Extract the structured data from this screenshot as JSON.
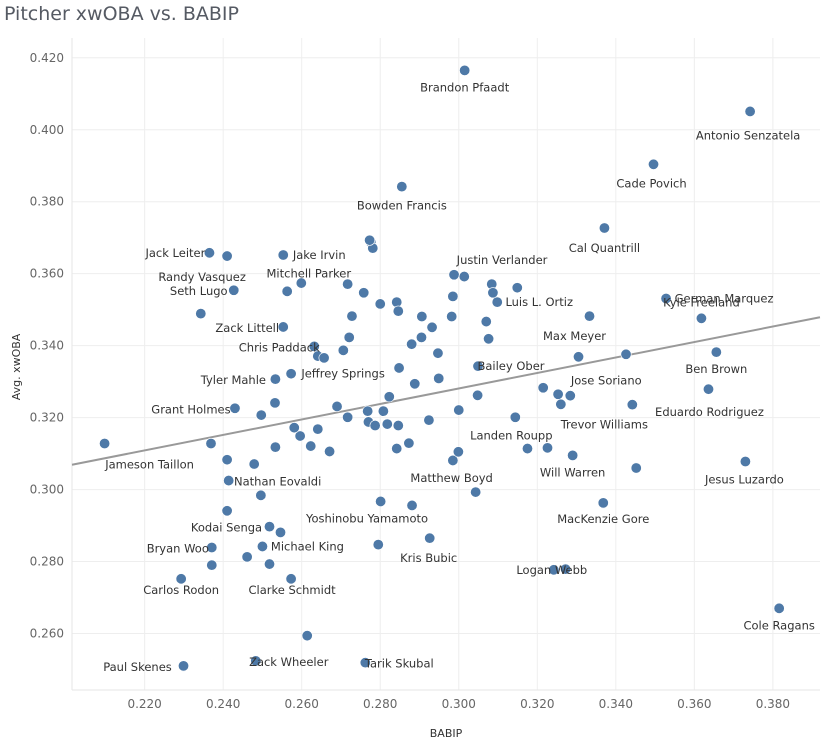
{
  "chart_data": {
    "type": "scatter",
    "title": "Pitcher xwOBA vs. BABIP",
    "xlabel": "BABIP",
    "ylabel": "Avg. xwOBA",
    "xlim": [
      0.2015,
      0.392
    ],
    "ylim": [
      0.2443,
      0.4255
    ],
    "x_ticks": [
      "0.220",
      "0.240",
      "0.260",
      "0.280",
      "0.300",
      "0.320",
      "0.340",
      "0.360",
      "0.380"
    ],
    "x_tick_values": [
      0.22,
      0.24,
      0.26,
      0.28,
      0.3,
      0.32,
      0.34,
      0.36,
      0.38
    ],
    "y_ticks": [
      "0.260",
      "0.280",
      "0.300",
      "0.320",
      "0.340",
      "0.360",
      "0.380",
      "0.400",
      "0.420"
    ],
    "y_tick_values": [
      0.26,
      0.28,
      0.3,
      0.32,
      0.34,
      0.36,
      0.38,
      0.4,
      0.42
    ],
    "grid": true,
    "trend_line": {
      "x": [
        0.2015,
        0.392
      ],
      "y": [
        0.3069,
        0.3479
      ]
    },
    "marker_color": "#4e79a7",
    "trend_color": "#999999",
    "points": [
      {
        "x": 0.3015,
        "y": 0.4165,
        "label": "Brandon Pfaadt"
      },
      {
        "x": 0.3742,
        "y": 0.4051,
        "label": "Antonio Senzatela"
      },
      {
        "x": 0.3496,
        "y": 0.3904,
        "label": "Cade Povich"
      },
      {
        "x": 0.2855,
        "y": 0.3842,
        "label": "Bowden Francis"
      },
      {
        "x": 0.3371,
        "y": 0.3727,
        "label": "Cal Quantrill"
      },
      {
        "x": 0.2365,
        "y": 0.3658,
        "label": "Jack Leiter"
      },
      {
        "x": 0.2553,
        "y": 0.3652,
        "label": "Jake Irvin"
      },
      {
        "x": 0.2988,
        "y": 0.3597,
        "label": "Justin Verlander"
      },
      {
        "x": 0.241,
        "y": 0.3649,
        "label": "Randy Vasquez"
      },
      {
        "x": 0.2776,
        "y": 0.3687,
        "label": "Mitchell Parker"
      },
      {
        "x": 0.2427,
        "y": 0.3554,
        "label": "Seth Lugo"
      },
      {
        "x": 0.3098,
        "y": 0.3521,
        "label": "Luis L. Ortiz"
      },
      {
        "x": 0.3528,
        "y": 0.3531,
        "label": "German Marquez"
      },
      {
        "x": 0.2553,
        "y": 0.3452,
        "label": "Zack Littell"
      },
      {
        "x": 0.3333,
        "y": 0.3482,
        "label": "Max Meyer"
      },
      {
        "x": 0.3618,
        "y": 0.3476,
        "label": "Kyle Freeland"
      },
      {
        "x": 0.2632,
        "y": 0.3398,
        "label": "Chris Paddack"
      },
      {
        "x": 0.3049,
        "y": 0.3343,
        "label": "Bailey Ober"
      },
      {
        "x": 0.3656,
        "y": 0.3382,
        "label": "Ben Brown"
      },
      {
        "x": 0.2533,
        "y": 0.3307,
        "label": "Tyler Mahle"
      },
      {
        "x": 0.2573,
        "y": 0.3322,
        "label": "Jeffrey Springs"
      },
      {
        "x": 0.3284,
        "y": 0.3261,
        "label": "Jose Soriano"
      },
      {
        "x": 0.243,
        "y": 0.3226,
        "label": "Grant Holmes"
      },
      {
        "x": 0.3636,
        "y": 0.3279,
        "label": "Eduardo Rodriguez"
      },
      {
        "x": 0.3442,
        "y": 0.3236,
        "label": "Trevor Williams"
      },
      {
        "x": 0.2098,
        "y": 0.3128,
        "label": "Jameson Taillon"
      },
      {
        "x": 0.3144,
        "y": 0.3201,
        "label": "Landen Roupp"
      },
      {
        "x": 0.373,
        "y": 0.3078,
        "label": "Jesus Luzardo"
      },
      {
        "x": 0.329,
        "y": 0.3095,
        "label": "Will Warren"
      },
      {
        "x": 0.2414,
        "y": 0.3025,
        "label": "Nathan Eovaldi"
      },
      {
        "x": 0.3043,
        "y": 0.2993,
        "label": "Matthew Boyd"
      },
      {
        "x": 0.2881,
        "y": 0.2956,
        "label": "Yoshinobu Yamamoto"
      },
      {
        "x": 0.3368,
        "y": 0.2963,
        "label": "MacKenzie Gore"
      },
      {
        "x": 0.2518,
        "y": 0.2897,
        "label": "Kodai Senga"
      },
      {
        "x": 0.2371,
        "y": 0.2839,
        "label": "Bryan Woo"
      },
      {
        "x": 0.25,
        "y": 0.2842,
        "label": "Michael King"
      },
      {
        "x": 0.2926,
        "y": 0.2865,
        "label": "Kris Bubic"
      },
      {
        "x": 0.2293,
        "y": 0.2752,
        "label": "Carlos Rodon"
      },
      {
        "x": 0.2573,
        "y": 0.2752,
        "label": "Clarke Schmidt"
      },
      {
        "x": 0.3242,
        "y": 0.2777,
        "label": "Logan Webb"
      },
      {
        "x": 0.3816,
        "y": 0.267,
        "label": "Cole Ragans"
      },
      {
        "x": 0.2299,
        "y": 0.251,
        "label": "Paul Skenes"
      },
      {
        "x": 0.2483,
        "y": 0.2524,
        "label": "Zack Wheeler"
      },
      {
        "x": 0.2762,
        "y": 0.2519,
        "label": "Tarik Skubal"
      },
      {
        "x": 0.2614,
        "y": 0.2594,
        "label": ""
      },
      {
        "x": 0.2371,
        "y": 0.279,
        "label": ""
      },
      {
        "x": 0.2461,
        "y": 0.2813,
        "label": ""
      },
      {
        "x": 0.2518,
        "y": 0.2793,
        "label": ""
      },
      {
        "x": 0.2795,
        "y": 0.2847,
        "label": ""
      },
      {
        "x": 0.2546,
        "y": 0.2881,
        "label": ""
      },
      {
        "x": 0.241,
        "y": 0.2941,
        "label": ""
      },
      {
        "x": 0.2496,
        "y": 0.2984,
        "label": ""
      },
      {
        "x": 0.2801,
        "y": 0.2967,
        "label": ""
      },
      {
        "x": 0.3272,
        "y": 0.2779,
        "label": ""
      },
      {
        "x": 0.241,
        "y": 0.3083,
        "label": ""
      },
      {
        "x": 0.2479,
        "y": 0.3071,
        "label": ""
      },
      {
        "x": 0.2533,
        "y": 0.3118,
        "label": ""
      },
      {
        "x": 0.2623,
        "y": 0.3121,
        "label": ""
      },
      {
        "x": 0.2671,
        "y": 0.3106,
        "label": ""
      },
      {
        "x": 0.2596,
        "y": 0.3149,
        "label": ""
      },
      {
        "x": 0.2581,
        "y": 0.3172,
        "label": ""
      },
      {
        "x": 0.2641,
        "y": 0.3168,
        "label": ""
      },
      {
        "x": 0.2369,
        "y": 0.3128,
        "label": ""
      },
      {
        "x": 0.2497,
        "y": 0.3207,
        "label": ""
      },
      {
        "x": 0.2532,
        "y": 0.3241,
        "label": ""
      },
      {
        "x": 0.269,
        "y": 0.3231,
        "label": ""
      },
      {
        "x": 0.2717,
        "y": 0.3201,
        "label": ""
      },
      {
        "x": 0.2768,
        "y": 0.3218,
        "label": ""
      },
      {
        "x": 0.277,
        "y": 0.3188,
        "label": ""
      },
      {
        "x": 0.2787,
        "y": 0.3178,
        "label": ""
      },
      {
        "x": 0.2808,
        "y": 0.3218,
        "label": ""
      },
      {
        "x": 0.2818,
        "y": 0.3182,
        "label": ""
      },
      {
        "x": 0.2846,
        "y": 0.3178,
        "label": ""
      },
      {
        "x": 0.2823,
        "y": 0.3258,
        "label": ""
      },
      {
        "x": 0.2842,
        "y": 0.3114,
        "label": ""
      },
      {
        "x": 0.2873,
        "y": 0.3129,
        "label": ""
      },
      {
        "x": 0.2924,
        "y": 0.3193,
        "label": ""
      },
      {
        "x": 0.2985,
        "y": 0.3081,
        "label": ""
      },
      {
        "x": 0.2999,
        "y": 0.3105,
        "label": ""
      },
      {
        "x": 0.3,
        "y": 0.3221,
        "label": ""
      },
      {
        "x": 0.3048,
        "y": 0.3262,
        "label": ""
      },
      {
        "x": 0.3175,
        "y": 0.3114,
        "label": ""
      },
      {
        "x": 0.3226,
        "y": 0.3116,
        "label": ""
      },
      {
        "x": 0.3215,
        "y": 0.3283,
        "label": ""
      },
      {
        "x": 0.3253,
        "y": 0.3265,
        "label": ""
      },
      {
        "x": 0.326,
        "y": 0.3237,
        "label": ""
      },
      {
        "x": 0.3452,
        "y": 0.306,
        "label": ""
      },
      {
        "x": 0.2706,
        "y": 0.3387,
        "label": ""
      },
      {
        "x": 0.2721,
        "y": 0.3423,
        "label": ""
      },
      {
        "x": 0.2641,
        "y": 0.3371,
        "label": ""
      },
      {
        "x": 0.2657,
        "y": 0.3366,
        "label": ""
      },
      {
        "x": 0.2848,
        "y": 0.3338,
        "label": ""
      },
      {
        "x": 0.288,
        "y": 0.3404,
        "label": ""
      },
      {
        "x": 0.2905,
        "y": 0.3423,
        "label": ""
      },
      {
        "x": 0.2947,
        "y": 0.3379,
        "label": ""
      },
      {
        "x": 0.2888,
        "y": 0.3294,
        "label": ""
      },
      {
        "x": 0.2949,
        "y": 0.3309,
        "label": ""
      },
      {
        "x": 0.2728,
        "y": 0.3482,
        "label": ""
      },
      {
        "x": 0.28,
        "y": 0.3516,
        "label": ""
      },
      {
        "x": 0.2842,
        "y": 0.3521,
        "label": ""
      },
      {
        "x": 0.2846,
        "y": 0.3496,
        "label": ""
      },
      {
        "x": 0.2906,
        "y": 0.3481,
        "label": ""
      },
      {
        "x": 0.2932,
        "y": 0.3451,
        "label": ""
      },
      {
        "x": 0.2982,
        "y": 0.3481,
        "label": ""
      },
      {
        "x": 0.2985,
        "y": 0.3537,
        "label": ""
      },
      {
        "x": 0.3014,
        "y": 0.3592,
        "label": ""
      },
      {
        "x": 0.3084,
        "y": 0.3571,
        "label": ""
      },
      {
        "x": 0.3087,
        "y": 0.3547,
        "label": ""
      },
      {
        "x": 0.3149,
        "y": 0.3561,
        "label": ""
      },
      {
        "x": 0.307,
        "y": 0.3467,
        "label": ""
      },
      {
        "x": 0.3076,
        "y": 0.3419,
        "label": ""
      },
      {
        "x": 0.2717,
        "y": 0.3571,
        "label": ""
      },
      {
        "x": 0.2758,
        "y": 0.3547,
        "label": ""
      },
      {
        "x": 0.2781,
        "y": 0.3671,
        "label": ""
      },
      {
        "x": 0.2599,
        "y": 0.3574,
        "label": ""
      },
      {
        "x": 0.2563,
        "y": 0.3551,
        "label": ""
      },
      {
        "x": 0.2343,
        "y": 0.3489,
        "label": ""
      },
      {
        "x": 0.2773,
        "y": 0.3693,
        "label": ""
      },
      {
        "x": 0.3426,
        "y": 0.3376,
        "label": ""
      },
      {
        "x": 0.3305,
        "y": 0.3369,
        "label": ""
      }
    ]
  }
}
